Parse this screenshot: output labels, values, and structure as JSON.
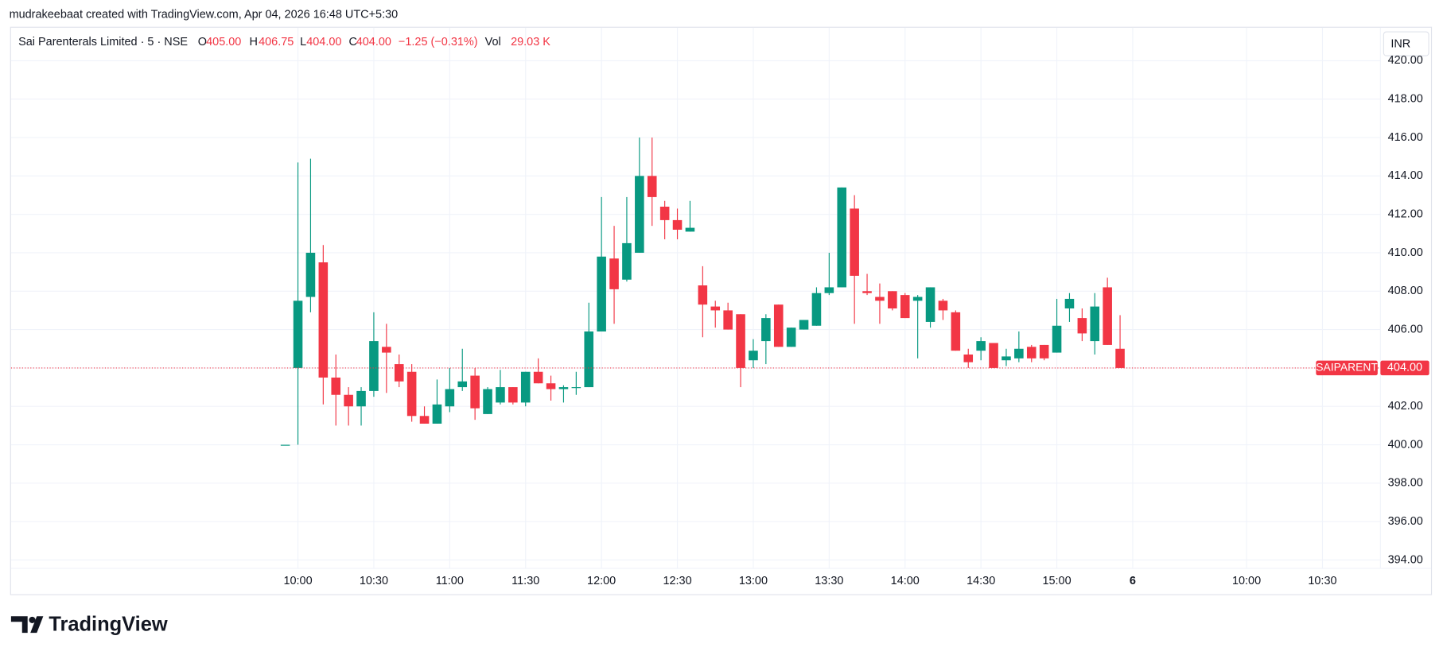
{
  "chart_data": {
    "type": "candlestick",
    "attribution": "mudrakeebaat created with TradingView.com, Apr 04, 2026 16:48 UTC+5:30",
    "title": "Sai Parenterals Limited · 5 · NSE",
    "header": [
      {
        "label": "O",
        "value": "405.00"
      },
      {
        "label": "H",
        "value": "406.75"
      },
      {
        "label": "L",
        "value": "404.00"
      },
      {
        "label": "C",
        "value": "404.00"
      },
      {
        "label": null,
        "value": "−1.25 (−0.31%)"
      },
      {
        "label": "Vol",
        "value": "29.03 K"
      }
    ],
    "currency": "INR",
    "brand": "TradingView",
    "up_color": "#089981",
    "down_color": "#f23645",
    "grid": true,
    "last_price": {
      "name": "SAIPARENT",
      "value": 404,
      "label": "404.00"
    },
    "categories": [
      null,
      "10:00",
      null,
      null,
      null,
      null,
      null,
      "10:30",
      null,
      null,
      null,
      null,
      null,
      "11:00",
      null,
      null,
      null,
      null,
      null,
      "11:30",
      null,
      null,
      null,
      null,
      null,
      "12:00",
      null,
      null,
      null,
      null,
      null,
      "12:30",
      null,
      null,
      null,
      null,
      null,
      "13:00",
      null,
      null,
      null,
      null,
      null,
      "13:30",
      null,
      null,
      null,
      null,
      null,
      "14:00",
      null,
      null,
      null,
      null,
      null,
      "14:30",
      null,
      null,
      null,
      null,
      null,
      "15:00",
      null,
      null,
      null,
      null,
      null,
      "6",
      null,
      null,
      null,
      null,
      null,
      null,
      null,
      null,
      "10:00",
      null,
      null,
      null,
      null,
      null,
      "10:30"
    ],
    "series": [
      {
        "name": "open",
        "values": [
          400,
          404.0,
          407.7,
          409.5,
          403.5,
          402.6,
          402.0,
          402.8,
          405.1,
          404.2,
          403.8,
          401.5,
          401.1,
          402.0,
          403.0,
          403.6,
          401.6,
          402.2,
          403.0,
          402.2,
          403.8,
          403.2,
          402.9,
          403.0,
          403.0,
          405.9,
          409.7,
          408.6,
          410.0,
          414.0,
          412.4,
          411.7,
          411.1,
          408.3,
          407.2,
          407.0,
          406.8,
          404.4,
          405.4,
          407.3,
          405.1,
          406.0,
          406.2,
          407.9,
          408.2,
          412.3,
          408.0,
          407.7,
          408.0,
          407.8,
          407.5,
          406.4,
          407.5,
          406.9,
          404.7,
          404.9,
          405.3,
          404.4,
          404.5,
          405.1,
          405.2,
          404.8,
          407.1,
          406.6,
          405.4,
          408.2,
          405.0,
          null,
          null,
          null,
          null,
          null,
          null,
          null,
          null,
          null,
          null,
          null,
          null,
          null,
          null,
          null,
          null
        ]
      },
      {
        "name": "high",
        "values": [
          400,
          414.7,
          414.9,
          410.4,
          404.7,
          403.0,
          403.0,
          406.9,
          406.3,
          404.7,
          404.2,
          402.0,
          403.4,
          404.0,
          405.0,
          404.0,
          403.0,
          403.9,
          403.0,
          403.8,
          404.5,
          403.6,
          403.1,
          403.8,
          407.4,
          412.9,
          411.4,
          412.9,
          416.0,
          416.0,
          412.7,
          412.3,
          412.7,
          409.3,
          407.5,
          407.4,
          406.8,
          405.5,
          406.8,
          407.3,
          406.1,
          406.5,
          408.2,
          410.0,
          413.4,
          413.0,
          408.9,
          408.4,
          408.0,
          407.9,
          407.8,
          408.2,
          407.6,
          407.0,
          405.0,
          405.6,
          405.3,
          405.0,
          405.9,
          405.2,
          405.2,
          407.6,
          407.9,
          407.1,
          407.9,
          408.7,
          406.75,
          null,
          null,
          null,
          null,
          null,
          null,
          null,
          null,
          null,
          null,
          null,
          null,
          null,
          null,
          null,
          null
        ]
      },
      {
        "name": "low",
        "values": [
          400,
          400.0,
          406.9,
          402.1,
          401.0,
          401.0,
          401.0,
          402.5,
          402.7,
          403.0,
          401.2,
          401.1,
          401.1,
          401.7,
          402.8,
          401.3,
          401.6,
          402.1,
          402.1,
          402.0,
          403.2,
          402.3,
          402.2,
          402.6,
          403.0,
          405.9,
          406.3,
          408.5,
          410.0,
          411.4,
          410.7,
          410.7,
          411.1,
          405.6,
          406.1,
          406.0,
          403.0,
          404.0,
          404.2,
          405.1,
          405.1,
          406.0,
          406.2,
          407.8,
          408.2,
          406.3,
          407.8,
          406.3,
          407.0,
          406.6,
          404.5,
          406.1,
          406.5,
          404.9,
          404.0,
          404.4,
          404.0,
          404.1,
          404.3,
          404.3,
          404.4,
          404.8,
          406.4,
          405.4,
          404.7,
          405.2,
          404.0,
          null,
          null,
          null,
          null,
          null,
          null,
          null,
          null,
          null,
          null,
          null,
          null,
          null,
          null,
          null,
          null
        ]
      },
      {
        "name": "close",
        "values": [
          400,
          407.5,
          410.0,
          403.5,
          402.6,
          402.0,
          402.8,
          405.4,
          404.8,
          403.3,
          401.5,
          401.1,
          402.1,
          402.9,
          403.3,
          401.9,
          402.9,
          403.0,
          402.2,
          403.8,
          403.2,
          402.9,
          403.0,
          403.0,
          405.9,
          409.8,
          408.1,
          410.5,
          414.0,
          412.9,
          411.7,
          411.2,
          411.3,
          407.3,
          407.0,
          406.0,
          404.0,
          404.9,
          406.6,
          405.1,
          406.1,
          406.5,
          407.9,
          408.2,
          413.4,
          408.8,
          407.9,
          407.5,
          407.1,
          406.6,
          407.7,
          408.2,
          407.0,
          404.9,
          404.3,
          405.4,
          404.0,
          404.6,
          405.0,
          404.5,
          404.5,
          406.2,
          407.6,
          405.8,
          407.2,
          405.2,
          404.0,
          null,
          null,
          null,
          null,
          null,
          null,
          null,
          null,
          null,
          null,
          null,
          null,
          null,
          null,
          null,
          null
        ]
      }
    ],
    "ylim": [
      393.56,
      421.72
    ],
    "yticks": [
      {
        "value": 394,
        "label": "394.00"
      },
      {
        "value": 396,
        "label": "396.00"
      },
      {
        "value": 398,
        "label": "398.00"
      },
      {
        "value": 400,
        "label": "400.00"
      },
      {
        "value": 402,
        "label": "402.00"
      },
      {
        "value": 404,
        "label": "404.00"
      },
      {
        "value": 406,
        "label": "406.00"
      },
      {
        "value": 408,
        "label": "408.00"
      },
      {
        "value": 410,
        "label": "410.00"
      },
      {
        "value": 412,
        "label": "412.00"
      },
      {
        "value": 414,
        "label": "414.00"
      },
      {
        "value": 416,
        "label": "416.00"
      },
      {
        "value": 418,
        "label": "418.00"
      },
      {
        "value": 420,
        "label": "420.00"
      }
    ]
  }
}
